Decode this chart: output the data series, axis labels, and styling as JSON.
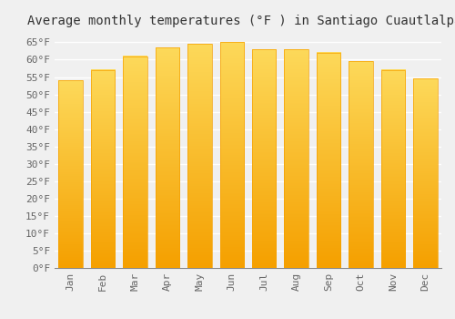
{
  "title": "Average monthly temperatures (°F ) in Santiago Cuautlalpan",
  "months": [
    "Jan",
    "Feb",
    "Mar",
    "Apr",
    "May",
    "Jun",
    "Jul",
    "Aug",
    "Sep",
    "Oct",
    "Nov",
    "Dec"
  ],
  "values": [
    54,
    57,
    61,
    63.5,
    64.5,
    65,
    63,
    63,
    62,
    59.5,
    57,
    54.5
  ],
  "bar_color_top": "#FDD95A",
  "bar_color_bottom": "#F5A000",
  "ylim": [
    0,
    68
  ],
  "yticks": [
    0,
    5,
    10,
    15,
    20,
    25,
    30,
    35,
    40,
    45,
    50,
    55,
    60,
    65
  ],
  "ytick_labels": [
    "0°F",
    "5°F",
    "10°F",
    "15°F",
    "20°F",
    "25°F",
    "30°F",
    "35°F",
    "40°F",
    "45°F",
    "50°F",
    "55°F",
    "60°F",
    "65°F"
  ],
  "background_color": "#f0f0f0",
  "grid_color": "#ffffff",
  "title_fontsize": 10,
  "tick_fontsize": 8,
  "font_family": "monospace"
}
